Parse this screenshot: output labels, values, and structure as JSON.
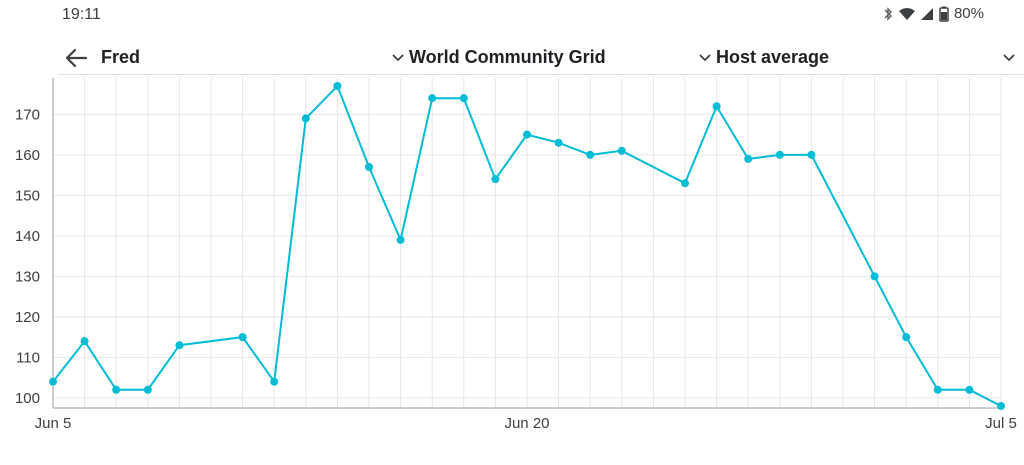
{
  "status_bar": {
    "time": "19:11",
    "battery": "80%",
    "icons": [
      "bluetooth-icon",
      "wifi-icon",
      "cell-signal-icon",
      "battery-icon"
    ]
  },
  "toolbar": {
    "host": "Fred",
    "project": "World Community Grid",
    "metric": "Host average"
  },
  "colors": {
    "series": "#00bcd4",
    "grid": "#e6e6e6",
    "axis": "#bdbdbd"
  },
  "chart_data": {
    "type": "line",
    "title": "",
    "xlabel": "",
    "ylabel": "",
    "x_tick_labels": [
      "Jun 5",
      "Jun 20",
      "Jul 5"
    ],
    "y_tick_labels": [
      "100",
      "110",
      "120",
      "130",
      "140",
      "150",
      "160",
      "170"
    ],
    "ylim": [
      97.5,
      177
    ],
    "grid": true,
    "legend": "none",
    "series": [
      {
        "x": [
          "Jun 5",
          "Jun 6",
          "Jun 7",
          "Jun 8",
          "Jun 9",
          "Jun 11",
          "Jun 12",
          "Jun 13",
          "Jun 14",
          "Jun 15",
          "Jun 16",
          "Jun 17",
          "Jun 18",
          "Jun 19",
          "Jun 20",
          "Jun 21",
          "Jun 22",
          "Jun 23",
          "Jun 25",
          "Jun 26",
          "Jun 27",
          "Jun 28",
          "Jun 29",
          "Jul 1",
          "Jul 2",
          "Jul 3",
          "Jul 4",
          "Jul 5"
        ],
        "values": [
          104,
          114,
          102,
          102,
          113,
          115,
          104,
          169,
          177,
          157,
          139,
          174,
          174,
          154,
          165,
          163,
          160,
          161,
          153,
          172,
          159,
          160,
          160,
          130,
          115,
          102,
          102,
          98
        ]
      }
    ]
  }
}
